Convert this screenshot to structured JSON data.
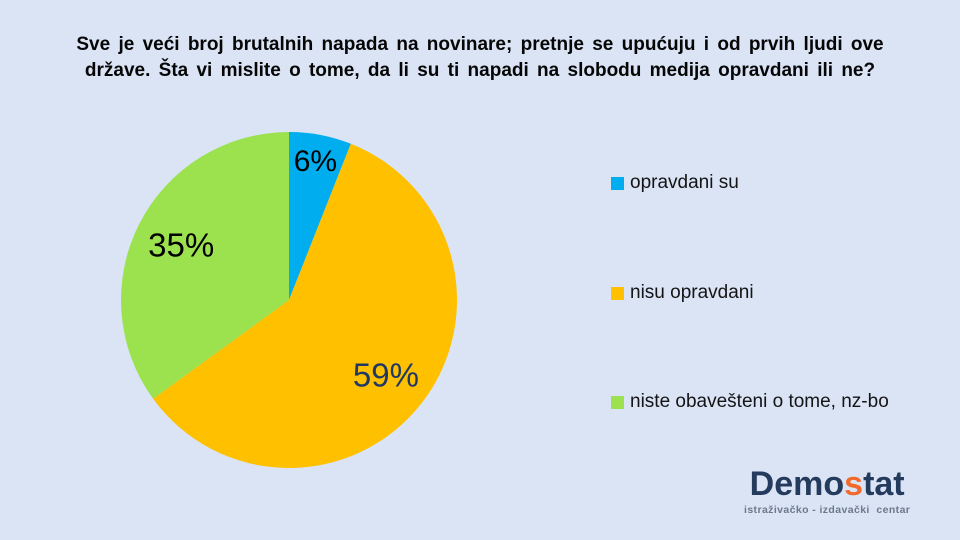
{
  "background_color": "#DAE4F5",
  "title": {
    "line1": "Sve je veći broj brutalnih  napada  na novinare; pretnje se upućuju i od prvih ljudi ove",
    "line2": "države. Šta vi mislite o tome, da li su ti napadi  na slobodu medija opravdani ili ne?"
  },
  "chart_data": {
    "type": "pie",
    "title": "Sve je veći broj brutalnih napada na novinare; pretnje se upućuju i od prvih ljudi ove države. Šta vi mislite o tome, da li su ti napadi na slobodu medija opravdani ili ne?",
    "labels": [
      "opravdani su",
      "nisu opravdani",
      "niste obavešteni o tome, nz-bo"
    ],
    "values": [
      6,
      59,
      35
    ],
    "data_labels": [
      "6%",
      "59%",
      "35%"
    ],
    "colors": [
      "#00AEEF",
      "#FFC000",
      "#9BE24E"
    ],
    "label_colors": [
      "#000000",
      "#1F3864",
      "#000000"
    ],
    "label_r": [
      0.84,
      0.73,
      0.72
    ],
    "label_sizes": [
      30,
      33,
      33
    ],
    "start_angle_deg": 0,
    "direction": "clockwise",
    "legend_position": "right",
    "grid": false
  },
  "brand": {
    "part1": "Demo",
    "accent": "s",
    "part2": "tat",
    "tagline": "istraživačko - izdavački  centar",
    "navy_color": "#243B5E",
    "accent_color": "#F16A2C",
    "tagline_color": "#6C7989"
  }
}
